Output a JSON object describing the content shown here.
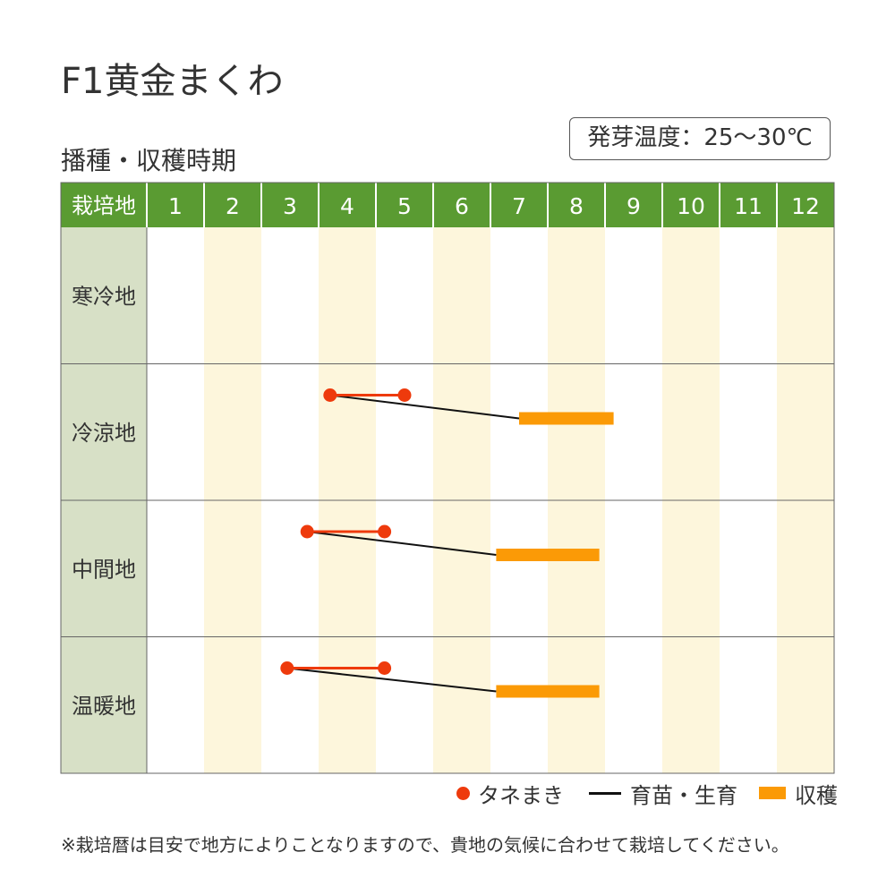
{
  "title": "F1黄金まくわ",
  "subtitle": "播種・収穫時期",
  "germination_label": "発芽温度：25〜30℃",
  "chart_data": {
    "type": "gantt",
    "row_header_label": "栽培地",
    "months": [
      "1",
      "2",
      "3",
      "4",
      "5",
      "6",
      "7",
      "8",
      "9",
      "10",
      "11",
      "12"
    ],
    "regions": [
      {
        "name": "寒冷地",
        "sowing": null,
        "raising": null,
        "harvest": null
      },
      {
        "name": "冷涼地",
        "sowing": [
          4.2,
          5.5
        ],
        "raising": [
          4.2,
          7.5
        ],
        "harvest": [
          7.5,
          9.15
        ]
      },
      {
        "name": "中間地",
        "sowing": [
          3.8,
          5.15
        ],
        "raising": [
          3.8,
          7.1
        ],
        "harvest": [
          7.1,
          8.9
        ]
      },
      {
        "name": "温暖地",
        "sowing": [
          3.45,
          5.15
        ],
        "raising": [
          3.45,
          7.1
        ],
        "harvest": [
          7.1,
          8.9
        ]
      }
    ],
    "legend": [
      {
        "key": "sowing",
        "label": "タネまき"
      },
      {
        "key": "raising",
        "label": "育苗・生育"
      },
      {
        "key": "harvest",
        "label": "収穫"
      }
    ],
    "colors": {
      "header_bg": "#5a9b32",
      "header_text": "#ffffff",
      "row_label_bg": "#d7e0c6",
      "stripe": "#fdf6dc",
      "grid": "#cccccc",
      "sowing": "#ee3a0c",
      "raising": "#111111",
      "harvest": "#fb9a06"
    }
  },
  "note": "※栽培暦は目安で地方によりことなりますので、貴地の気候に合わせて栽培してください。"
}
